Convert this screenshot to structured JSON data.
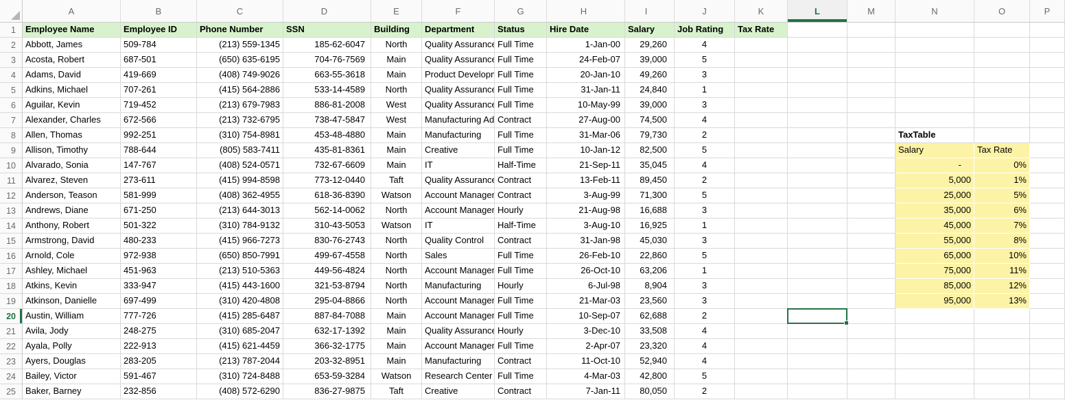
{
  "colors": {
    "header_fill": "#D8F2CE",
    "tax_fill": "#FCF3A6",
    "selection_green": "#217346",
    "gridline": "#D9D9D9"
  },
  "grid": {
    "column_letters": [
      "A",
      "B",
      "C",
      "D",
      "E",
      "F",
      "G",
      "H",
      "I",
      "J",
      "K",
      "L",
      "M",
      "N",
      "O",
      "P"
    ],
    "row_numbers": [
      1,
      2,
      3,
      4,
      5,
      6,
      7,
      8,
      9,
      10,
      11,
      12,
      13,
      14,
      15,
      16,
      17,
      18,
      19,
      20,
      21,
      22,
      23,
      24,
      25
    ],
    "selected_cell": "L20",
    "selected_column": "L",
    "selected_row": 20
  },
  "table": {
    "headers": [
      "Employee Name",
      "Employee ID",
      "Phone Number",
      "SSN",
      "Building",
      "Department",
      "Status",
      "Hire Date",
      "Salary",
      "Job Rating",
      "Tax Rate"
    ],
    "employees": [
      [
        "Abbott, James",
        "509-784",
        "(213) 559-1345",
        "185-62-6047",
        "North",
        "Quality Assurance",
        "Full Time",
        "1-Jan-00",
        "29,260",
        "4"
      ],
      [
        "Acosta, Robert",
        "687-501",
        "(650) 635-6195",
        "704-76-7569",
        "Main",
        "Quality Assurance",
        "Full Time",
        "24-Feb-07",
        "39,000",
        "5"
      ],
      [
        "Adams, David",
        "419-669",
        "(408) 749-9026",
        "663-55-3618",
        "Main",
        "Product Development",
        "Full Time",
        "20-Jan-10",
        "49,260",
        "3"
      ],
      [
        "Adkins, Michael",
        "707-261",
        "(415) 564-2886",
        "533-14-4589",
        "North",
        "Quality Assurance",
        "Full Time",
        "31-Jan-11",
        "24,840",
        "1"
      ],
      [
        "Aguilar, Kevin",
        "719-452",
        "(213) 679-7983",
        "886-81-2008",
        "West",
        "Quality Assurance",
        "Full Time",
        "10-May-99",
        "39,000",
        "3"
      ],
      [
        "Alexander, Charles",
        "672-566",
        "(213) 732-6795",
        "738-47-5847",
        "West",
        "Manufacturing Admin",
        "Contract",
        "27-Aug-00",
        "74,500",
        "4"
      ],
      [
        "Allen, Thomas",
        "992-251",
        "(310) 754-8981",
        "453-48-4880",
        "Main",
        "Manufacturing",
        "Full Time",
        "31-Mar-06",
        "79,730",
        "2"
      ],
      [
        "Allison, Timothy",
        "788-644",
        "(805) 583-7411",
        "435-81-8361",
        "Main",
        "Creative",
        "Full Time",
        "10-Jan-12",
        "82,500",
        "5"
      ],
      [
        "Alvarado, Sonia",
        "147-767",
        "(408) 524-0571",
        "732-67-6609",
        "Main",
        "IT",
        "Half-Time",
        "21-Sep-11",
        "35,045",
        "4"
      ],
      [
        "Alvarez, Steven",
        "273-611",
        "(415) 994-8598",
        "773-12-0440",
        "Taft",
        "Quality Assurance",
        "Contract",
        "13-Feb-11",
        "89,450",
        "2"
      ],
      [
        "Anderson, Teason",
        "581-999",
        "(408) 362-4955",
        "618-36-8390",
        "Watson",
        "Account Management",
        "Contract",
        "3-Aug-99",
        "71,300",
        "5"
      ],
      [
        "Andrews, Diane",
        "671-250",
        "(213) 644-3013",
        "562-14-0062",
        "North",
        "Account Management",
        "Hourly",
        "21-Aug-98",
        "16,688",
        "3"
      ],
      [
        "Anthony, Robert",
        "501-322",
        "(310) 784-9132",
        "310-43-5053",
        "Watson",
        "IT",
        "Half-Time",
        "3-Aug-10",
        "16,925",
        "1"
      ],
      [
        "Armstrong, David",
        "480-233",
        "(415) 966-7273",
        "830-76-2743",
        "North",
        "Quality Control",
        "Contract",
        "31-Jan-98",
        "45,030",
        "3"
      ],
      [
        "Arnold, Cole",
        "972-938",
        "(650) 850-7991",
        "499-67-4558",
        "North",
        "Sales",
        "Full Time",
        "26-Feb-10",
        "22,860",
        "5"
      ],
      [
        "Ashley, Michael",
        "451-963",
        "(213) 510-5363",
        "449-56-4824",
        "North",
        "Account Management",
        "Full Time",
        "26-Oct-10",
        "63,206",
        "1"
      ],
      [
        "Atkins, Kevin",
        "333-947",
        "(415) 443-1600",
        "321-53-8794",
        "North",
        "Manufacturing",
        "Hourly",
        "6-Jul-98",
        "8,904",
        "3"
      ],
      [
        "Atkinson, Danielle",
        "697-499",
        "(310) 420-4808",
        "295-04-8866",
        "North",
        "Account Management",
        "Full Time",
        "21-Mar-03",
        "23,560",
        "3"
      ],
      [
        "Austin, William",
        "777-726",
        "(415) 285-6487",
        "887-84-7088",
        "Main",
        "Account Management",
        "Full Time",
        "10-Sep-07",
        "62,688",
        "2"
      ],
      [
        "Avila, Jody",
        "248-275",
        "(310) 685-2047",
        "632-17-1392",
        "Main",
        "Quality Assurance",
        "Hourly",
        "3-Dec-10",
        "33,508",
        "4"
      ],
      [
        "Ayala, Polly",
        "222-913",
        "(415) 621-4459",
        "366-32-1775",
        "Main",
        "Account Management",
        "Full Time",
        "2-Apr-07",
        "23,320",
        "4"
      ],
      [
        "Ayers, Douglas",
        "283-205",
        "(213) 787-2044",
        "203-32-8951",
        "Main",
        "Manufacturing",
        "Contract",
        "11-Oct-10",
        "52,940",
        "4"
      ],
      [
        "Bailey, Victor",
        "591-467",
        "(310) 724-8488",
        "653-59-3284",
        "Watson",
        "Research Center",
        "Full Time",
        "4-Mar-03",
        "42,800",
        "5"
      ],
      [
        "Baker, Barney",
        "232-856",
        "(408) 572-6290",
        "836-27-9875",
        "Taft",
        "Creative",
        "Contract",
        "7-Jan-11",
        "80,050",
        "2"
      ]
    ]
  },
  "tax_table": {
    "title": "TaxTable",
    "headers": [
      "Salary",
      "Tax Rate"
    ],
    "rows": [
      [
        "-",
        "0%"
      ],
      [
        "5,000",
        "1%"
      ],
      [
        "25,000",
        "5%"
      ],
      [
        "35,000",
        "6%"
      ],
      [
        "45,000",
        "7%"
      ],
      [
        "55,000",
        "8%"
      ],
      [
        "65,000",
        "10%"
      ],
      [
        "75,000",
        "11%"
      ],
      [
        "85,000",
        "12%"
      ],
      [
        "95,000",
        "13%"
      ]
    ]
  }
}
